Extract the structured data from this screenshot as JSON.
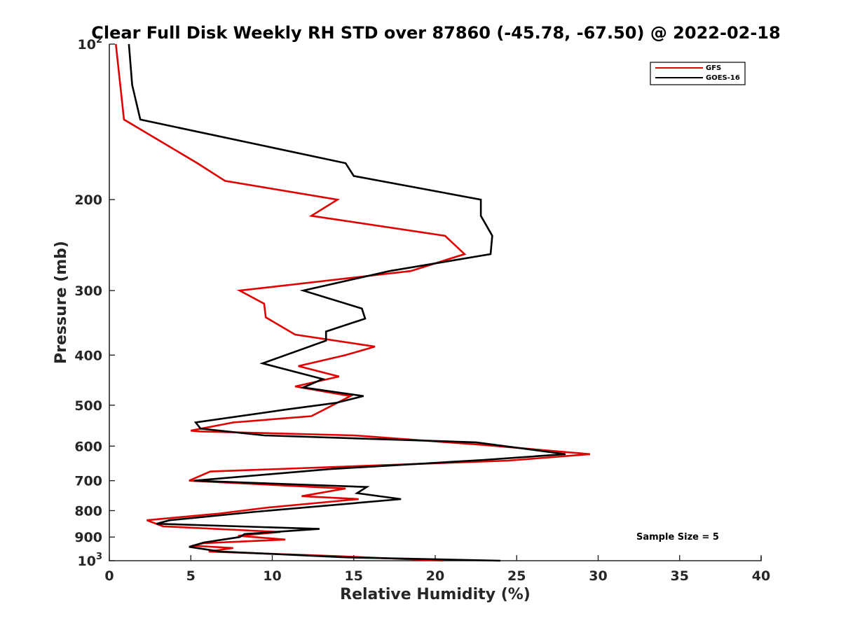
{
  "chart_data": {
    "type": "line",
    "title": "Clear Full Disk Weekly RH STD over 87860 (-45.78, -67.50) @ 2022-02-18",
    "xlabel": "Relative Humidity (%)",
    "ylabel": "Pressure (mb)",
    "xlim": [
      0,
      40
    ],
    "ylim": [
      100,
      1000
    ],
    "y_scale": "log",
    "y_reversed": true,
    "x_ticks": [
      "0",
      "5",
      "10",
      "15",
      "20",
      "25",
      "30",
      "35",
      "40"
    ],
    "y_ticks": [
      {
        "value": 100,
        "base": "10",
        "sup": "2"
      },
      {
        "value": 200,
        "base": "200",
        "sup": ""
      },
      {
        "value": 300,
        "base": "300",
        "sup": ""
      },
      {
        "value": 400,
        "base": "400",
        "sup": ""
      },
      {
        "value": 500,
        "base": "500",
        "sup": ""
      },
      {
        "value": 600,
        "base": "600",
        "sup": ""
      },
      {
        "value": 700,
        "base": "700",
        "sup": ""
      },
      {
        "value": 800,
        "base": "800",
        "sup": ""
      },
      {
        "value": 900,
        "base": "900",
        "sup": ""
      },
      {
        "value": 1000,
        "base": "10",
        "sup": "3"
      }
    ],
    "grid": false,
    "legend_position": "top-right",
    "annotation": "Sample Size = 5",
    "series": [
      {
        "name": "GFS",
        "color": "#e00000",
        "points": [
          [
            0.4,
            100
          ],
          [
            0.9,
            140
          ],
          [
            5.4,
            170
          ],
          [
            7.1,
            184
          ],
          [
            14.0,
            200
          ],
          [
            12.4,
            215
          ],
          [
            20.6,
            235
          ],
          [
            21.8,
            255
          ],
          [
            18.5,
            275
          ],
          [
            8.0,
            300
          ],
          [
            9.5,
            318
          ],
          [
            9.6,
            338
          ],
          [
            11.4,
            365
          ],
          [
            16.3,
            385
          ],
          [
            14.5,
            400
          ],
          [
            11.6,
            420
          ],
          [
            14.1,
            440
          ],
          [
            11.4,
            460
          ],
          [
            14.8,
            480
          ],
          [
            12.4,
            525
          ],
          [
            7.6,
            540
          ],
          [
            5.0,
            560
          ],
          [
            5.5,
            562
          ],
          [
            15.0,
            572
          ],
          [
            23.0,
            597
          ],
          [
            29.5,
            622
          ],
          [
            24.5,
            640
          ],
          [
            6.2,
            672
          ],
          [
            4.9,
            700
          ],
          [
            14.5,
            725
          ],
          [
            11.8,
            750
          ],
          [
            15.3,
            760
          ],
          [
            9.6,
            790
          ],
          [
            6.8,
            810
          ],
          [
            2.3,
            835
          ],
          [
            3.3,
            858
          ],
          [
            10.5,
            880
          ],
          [
            7.9,
            895
          ],
          [
            10.8,
            910
          ],
          [
            5.8,
            925
          ],
          [
            5.1,
            935
          ],
          [
            7.6,
            945
          ],
          [
            6.1,
            960
          ],
          [
            14.0,
            980
          ],
          [
            20.5,
            1000
          ]
        ]
      },
      {
        "name": "GOES-16",
        "color": "#000000",
        "points": [
          [
            1.2,
            100
          ],
          [
            1.4,
            120
          ],
          [
            1.9,
            140
          ],
          [
            14.5,
            170
          ],
          [
            15.0,
            180
          ],
          [
            22.8,
            200
          ],
          [
            22.8,
            215
          ],
          [
            23.5,
            235
          ],
          [
            23.4,
            255
          ],
          [
            17.2,
            275
          ],
          [
            11.9,
            300
          ],
          [
            15.5,
            325
          ],
          [
            15.7,
            340
          ],
          [
            13.3,
            360
          ],
          [
            13.3,
            375
          ],
          [
            9.4,
            415
          ],
          [
            13.1,
            445
          ],
          [
            11.9,
            462
          ],
          [
            15.6,
            480
          ],
          [
            13.9,
            495
          ],
          [
            10.8,
            510
          ],
          [
            5.3,
            540
          ],
          [
            5.6,
            555
          ],
          [
            9.5,
            572
          ],
          [
            22.5,
            590
          ],
          [
            28.0,
            622
          ],
          [
            23.0,
            638
          ],
          [
            13.5,
            665
          ],
          [
            5.2,
            700
          ],
          [
            15.8,
            720
          ],
          [
            15.2,
            740
          ],
          [
            17.9,
            760
          ],
          [
            8.8,
            805
          ],
          [
            3.7,
            835
          ],
          [
            2.9,
            848
          ],
          [
            12.9,
            868
          ],
          [
            8.3,
            888
          ],
          [
            8.0,
            900
          ],
          [
            5.8,
            922
          ],
          [
            4.9,
            940
          ],
          [
            6.8,
            960
          ],
          [
            14.5,
            985
          ],
          [
            24.0,
            1000
          ]
        ]
      }
    ]
  }
}
